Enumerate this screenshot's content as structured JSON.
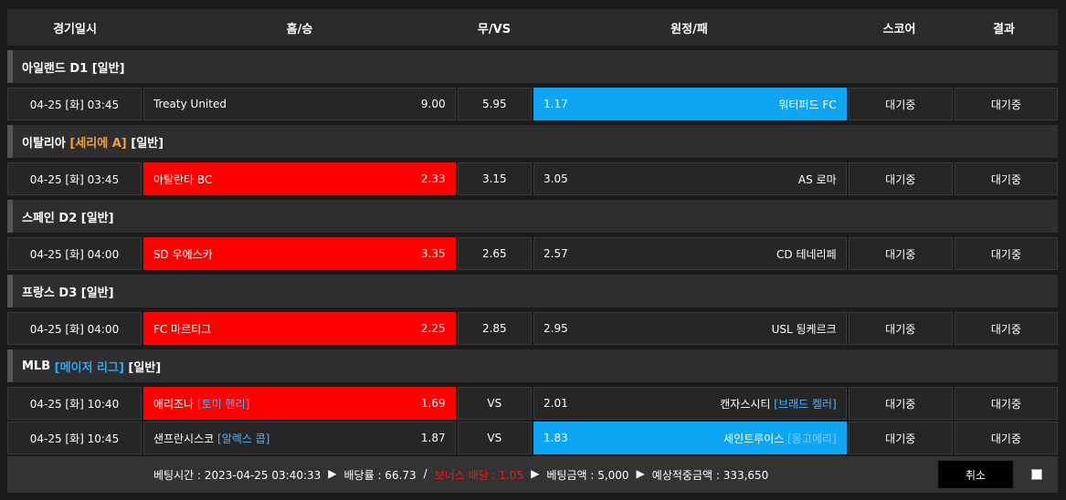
{
  "header": [
    "경기일시",
    "홈/승",
    "무/VS",
    "원정/패",
    "스코어",
    "결과"
  ],
  "groups": [
    {
      "league": "아일랜드 D1",
      "sub": "",
      "tag": "[일반]",
      "sub_color": "",
      "matches": [
        {
          "time": "04-25 [화] 03:45",
          "home": "Treaty United",
          "home_pitcher": "",
          "home_odds": "9.00",
          "draw": "5.95",
          "away_odds": "1.17",
          "away": "워터퍼드 FC",
          "away_pitcher": "",
          "score": "대기중",
          "result": "대기중",
          "sel": "away"
        }
      ]
    },
    {
      "league": "이탈리아",
      "sub": "[세리에 A]",
      "tag": "[일반]",
      "sub_color": "orange",
      "matches": [
        {
          "time": "04-25 [화] 03:45",
          "home": "아탈란타 BC",
          "home_pitcher": "",
          "home_odds": "2.33",
          "draw": "3.15",
          "away_odds": "3.05",
          "away": "AS 로마",
          "away_pitcher": "",
          "score": "대기중",
          "result": "대기중",
          "sel": "home"
        }
      ]
    },
    {
      "league": "스페인 D2",
      "sub": "",
      "tag": "[일반]",
      "sub_color": "",
      "matches": [
        {
          "time": "04-25 [화] 04:00",
          "home": "SD 우에스카",
          "home_pitcher": "",
          "home_odds": "3.35",
          "draw": "2.65",
          "away_odds": "2.57",
          "away": "CD 테네리페",
          "away_pitcher": "",
          "score": "대기중",
          "result": "대기중",
          "sel": "home"
        }
      ]
    },
    {
      "league": "프랑스 D3",
      "sub": "",
      "tag": "[일반]",
      "sub_color": "",
      "matches": [
        {
          "time": "04-25 [화] 04:00",
          "home": "FC 마르티그",
          "home_pitcher": "",
          "home_odds": "2.25",
          "draw": "2.85",
          "away_odds": "2.95",
          "away": "USL 됭케르크",
          "away_pitcher": "",
          "score": "대기중",
          "result": "대기중",
          "sel": "home"
        }
      ]
    },
    {
      "league": "MLB",
      "sub": "[메이저 리그]",
      "tag": "[일반]",
      "sub_color": "blue",
      "matches": [
        {
          "time": "04-25 [화] 10:40",
          "home": "애리조나",
          "home_pitcher": "[토미 헨리]",
          "home_odds": "1.69",
          "draw": "VS",
          "away_odds": "2.01",
          "away": "캔자스시티",
          "away_pitcher": "[브래드 켈러]",
          "score": "대기중",
          "result": "대기중",
          "sel": "home"
        },
        {
          "time": "04-25 [화] 10:45",
          "home": "샌프란시스코",
          "home_pitcher": "[알렉스 콥]",
          "home_odds": "1.87",
          "draw": "VS",
          "away_odds": "1.83",
          "away": "세인트루이스",
          "away_pitcher": "[몽고메리]",
          "score": "대기중",
          "result": "대기중",
          "sel": "away"
        }
      ]
    }
  ],
  "footer": {
    "bet_time": "베팅시간 : 2023-04-25 03:40:33",
    "odds": "배당률 : 66.73",
    "sep": "/",
    "bonus": "보너스 배당 : 1.05",
    "amount": "베팅금액 : 5,000",
    "expected": "예상적중금액 : 333,650",
    "arrow": "▶",
    "cancel": "취소"
  }
}
